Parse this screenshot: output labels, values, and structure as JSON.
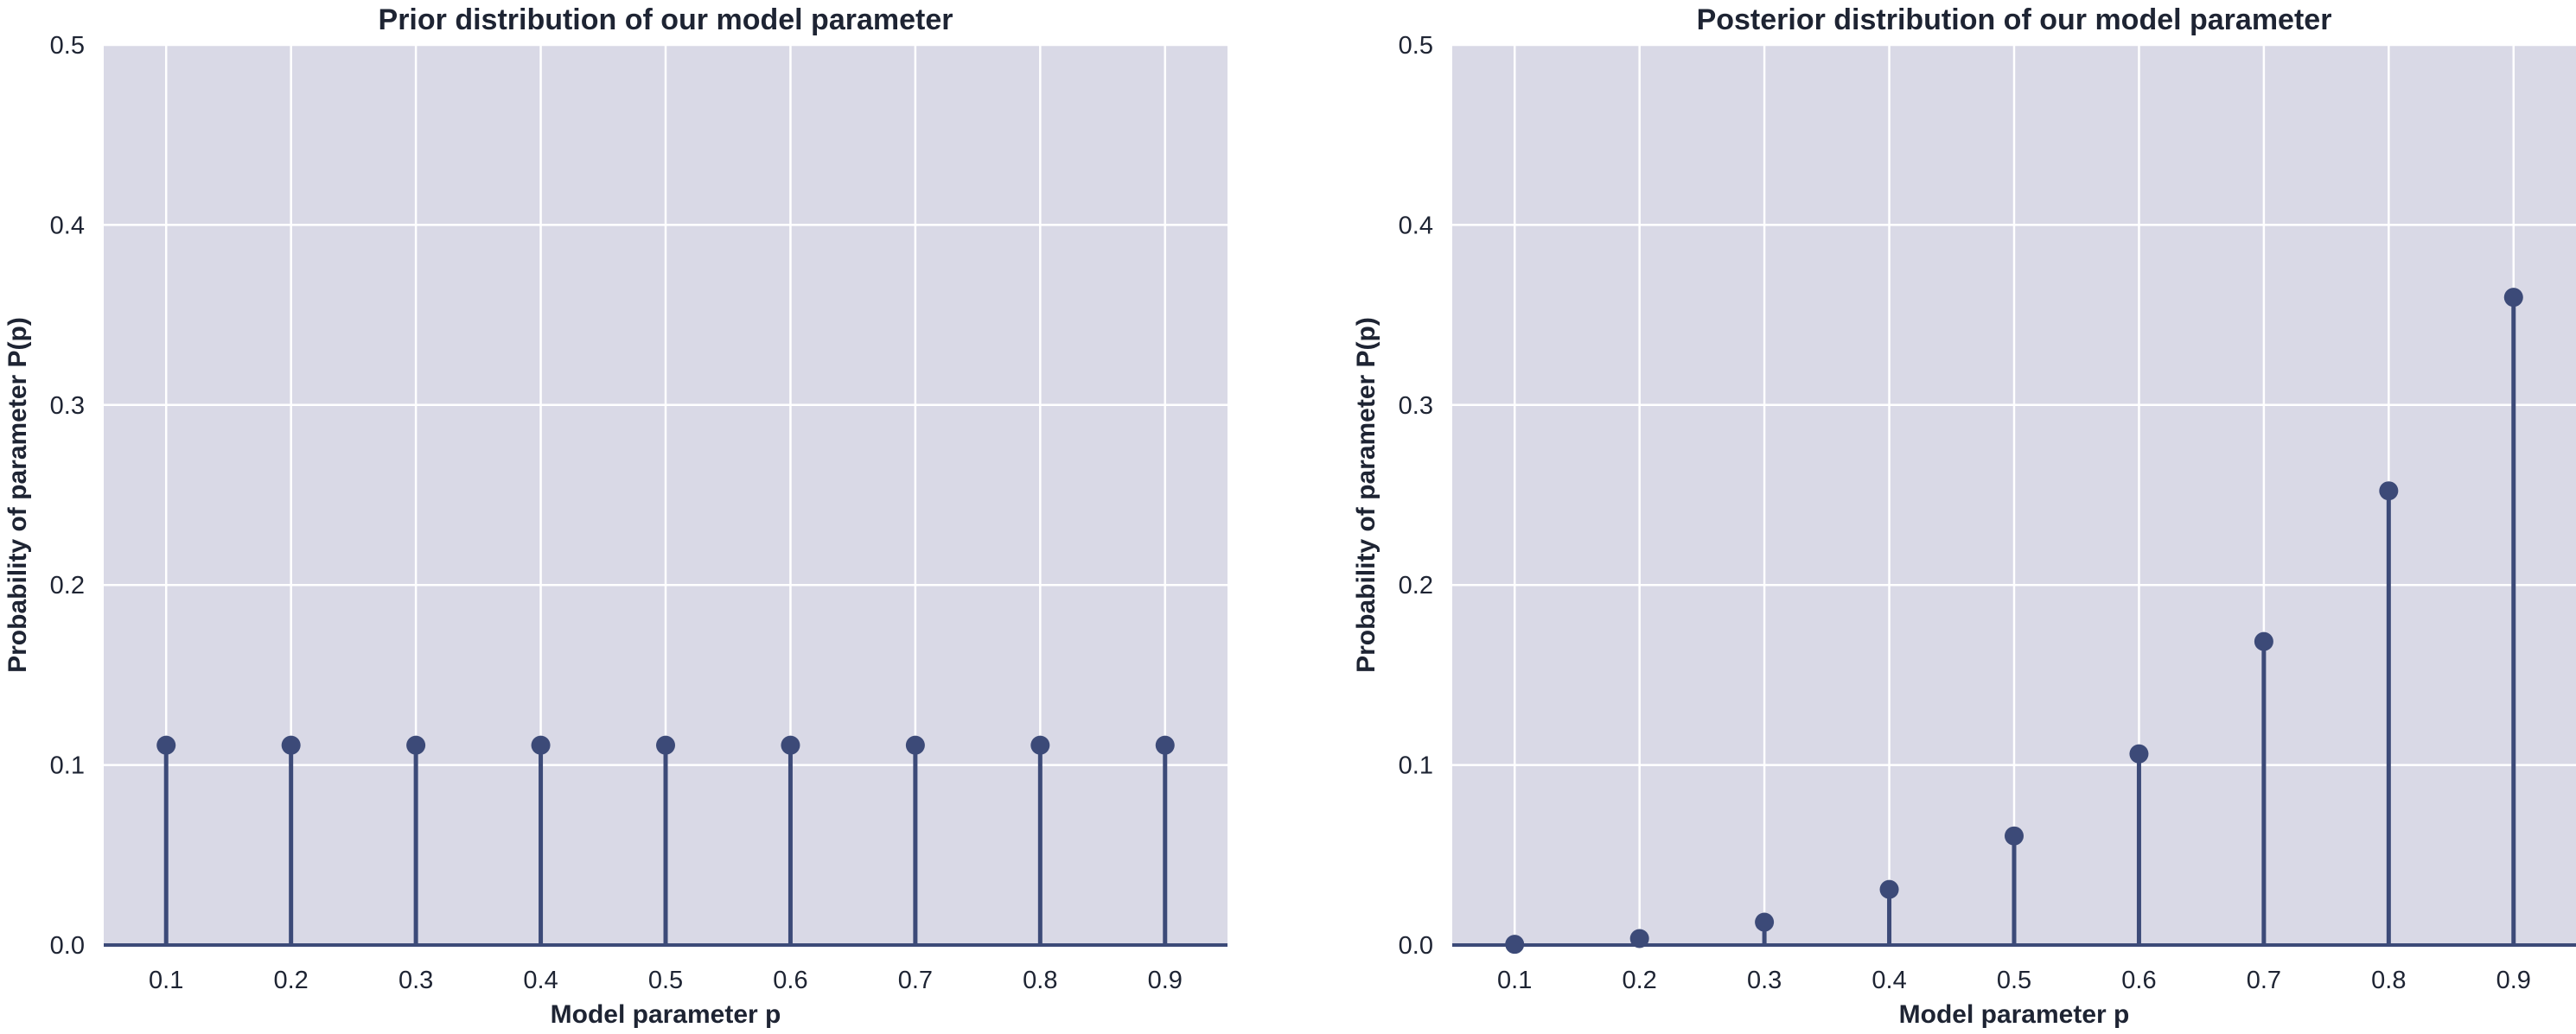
{
  "colors": {
    "plot_background": "#d9d9e6",
    "grid": "#ffffff",
    "stem": "#3c4a78"
  },
  "chart_data": [
    {
      "type": "stem",
      "title": "Prior distribution of our model parameter",
      "xlabel": "Model parameter p",
      "ylabel": "Probability of parameter P(p)",
      "x": [
        0.1,
        0.2,
        0.3,
        0.4,
        0.5,
        0.6,
        0.7,
        0.8,
        0.9
      ],
      "x_tick_labels": [
        "0.1",
        "0.2",
        "0.3",
        "0.4",
        "0.5",
        "0.6",
        "0.7",
        "0.8",
        "0.9"
      ],
      "y": [
        0.111,
        0.111,
        0.111,
        0.111,
        0.111,
        0.111,
        0.111,
        0.111,
        0.111
      ],
      "y_ticks": [
        0.0,
        0.1,
        0.2,
        0.3,
        0.4,
        0.5
      ],
      "y_tick_labels": [
        "0.0",
        "0.1",
        "0.2",
        "0.3",
        "0.4",
        "0.5"
      ],
      "xlim": [
        0.05,
        0.95
      ],
      "ylim": [
        0,
        0.5
      ],
      "grid": true
    },
    {
      "type": "stem",
      "title": "Posterior distribution of our model parameter",
      "xlabel": "Model parameter p",
      "ylabel": "Probability of parameter P(p)",
      "x": [
        0.1,
        0.2,
        0.3,
        0.4,
        0.5,
        0.6,
        0.7,
        0.8,
        0.9
      ],
      "x_tick_labels": [
        "0.1",
        "0.2",
        "0.3",
        "0.4",
        "0.5",
        "0.6",
        "0.7",
        "0.8",
        "0.9"
      ],
      "y": [
        0.0004,
        0.0036,
        0.0127,
        0.0309,
        0.0606,
        0.1062,
        0.1686,
        0.2523,
        0.3598
      ],
      "y_ticks": [
        0.0,
        0.1,
        0.2,
        0.3,
        0.4,
        0.5
      ],
      "y_tick_labels": [
        "0.0",
        "0.1",
        "0.2",
        "0.3",
        "0.4",
        "0.5"
      ],
      "xlim": [
        0.05,
        0.95
      ],
      "ylim": [
        0,
        0.5
      ],
      "grid": true
    }
  ]
}
